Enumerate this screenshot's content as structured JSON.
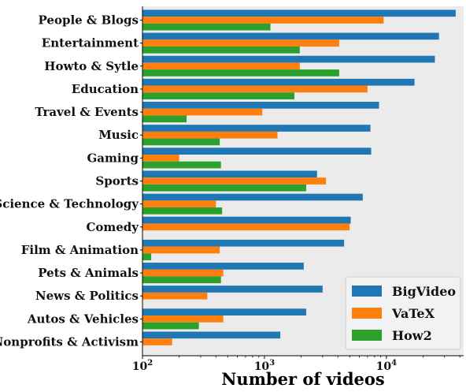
{
  "chart_data": {
    "type": "bar",
    "orientation": "horizontal",
    "x_scale": "log",
    "xlim": [
      100,
      43000
    ],
    "xlabel": "Number of videos",
    "x_ticks": [
      {
        "value": 100,
        "base": "10",
        "exp": "2"
      },
      {
        "value": 1000,
        "base": "10",
        "exp": "3"
      },
      {
        "value": 10000,
        "base": "10",
        "exp": "4"
      }
    ],
    "grid": false,
    "legend_position": "lower-right",
    "categories": [
      "People & Blogs",
      "Entertainment",
      "Howto & Sytle",
      "Education",
      "Travel & Events",
      "Music",
      "Gaming",
      "Sports",
      "Science & Technology",
      "Comedy",
      "Film & Animation",
      "Pets & Animals",
      "News & Politics",
      "Autos & Vehicles",
      "Nonprofits & Activism"
    ],
    "series": [
      {
        "name": "BigVideo",
        "color": "#1f77b4",
        "values": [
          37000,
          27000,
          25000,
          17000,
          8700,
          7400,
          7500,
          2700,
          6400,
          5100,
          4500,
          2100,
          3000,
          2200,
          1350
        ]
      },
      {
        "name": "VaTeX",
        "color": "#ff7f0e",
        "values": [
          9500,
          4100,
          1950,
          7000,
          960,
          1280,
          200,
          3200,
          400,
          5000,
          430,
          460,
          340,
          460,
          175
        ]
      },
      {
        "name": "How2",
        "color": "#2ca02c",
        "values": [
          1120,
          1950,
          4100,
          1760,
          230,
          430,
          440,
          2200,
          450,
          0,
          118,
          440,
          0,
          290,
          0
        ]
      }
    ]
  }
}
